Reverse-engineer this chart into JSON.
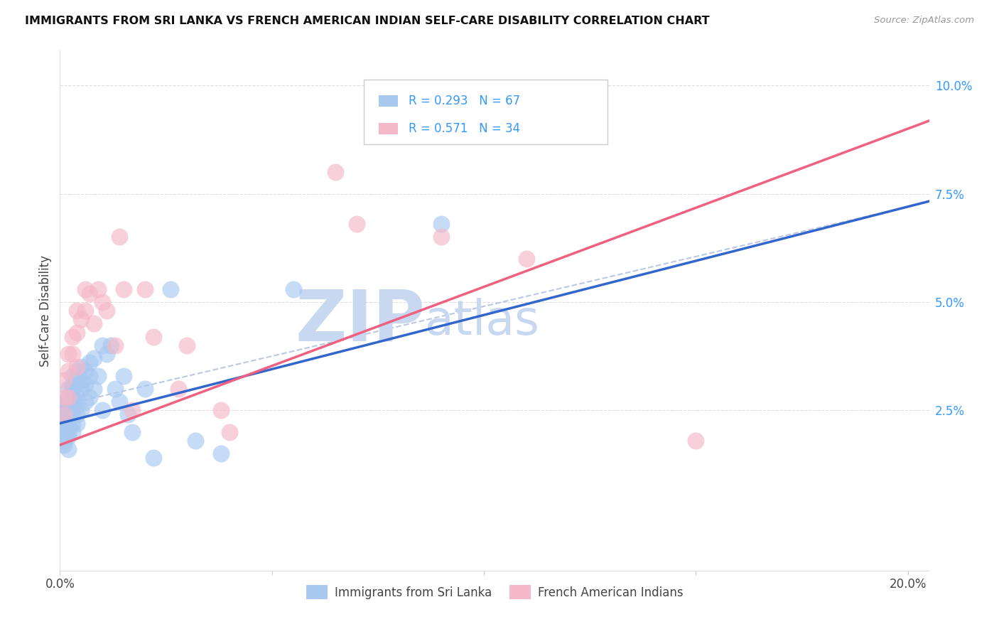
{
  "title": "IMMIGRANTS FROM SRI LANKA VS FRENCH AMERICAN INDIAN SELF-CARE DISABILITY CORRELATION CHART",
  "source": "Source: ZipAtlas.com",
  "ylabel": "Self-Care Disability",
  "xlim": [
    0.0,
    0.205
  ],
  "ylim": [
    -0.012,
    0.108
  ],
  "xtick_positions": [
    0.0,
    0.05,
    0.1,
    0.15,
    0.2
  ],
  "xtick_labels": [
    "0.0%",
    "",
    "",
    "",
    "20.0%"
  ],
  "yticks_right": [
    0.025,
    0.05,
    0.075,
    0.1
  ],
  "yticklabels_right": [
    "2.5%",
    "5.0%",
    "7.5%",
    "10.0%"
  ],
  "series1_color": "#A8C8F0",
  "series2_color": "#F5B8C8",
  "series1_label": "Immigrants from Sri Lanka",
  "series2_label": "French American Indians",
  "R1": "0.293",
  "N1": "67",
  "R2": "0.571",
  "N2": "34",
  "watermark_text": "ZIPAtlas",
  "watermark_color": "#C8D8F0",
  "background_color": "#ffffff",
  "line1_color": "#3366CC",
  "line1_style": "-",
  "line2_color": "#F06080",
  "line2_style": "-",
  "series1_x": [
    0.001,
    0.001,
    0.001,
    0.001,
    0.001,
    0.001,
    0.001,
    0.001,
    0.001,
    0.001,
    0.002,
    0.002,
    0.002,
    0.002,
    0.002,
    0.002,
    0.002,
    0.002,
    0.002,
    0.002,
    0.002,
    0.002,
    0.003,
    0.003,
    0.003,
    0.003,
    0.003,
    0.003,
    0.003,
    0.003,
    0.003,
    0.004,
    0.004,
    0.004,
    0.004,
    0.004,
    0.004,
    0.004,
    0.005,
    0.005,
    0.005,
    0.005,
    0.006,
    0.006,
    0.006,
    0.007,
    0.007,
    0.007,
    0.008,
    0.008,
    0.009,
    0.01,
    0.01,
    0.011,
    0.012,
    0.013,
    0.014,
    0.015,
    0.016,
    0.017,
    0.02,
    0.022,
    0.026,
    0.032,
    0.038,
    0.055,
    0.09
  ],
  "series1_y": [
    0.026,
    0.025,
    0.024,
    0.023,
    0.022,
    0.021,
    0.02,
    0.019,
    0.018,
    0.017,
    0.03,
    0.028,
    0.027,
    0.026,
    0.025,
    0.024,
    0.023,
    0.022,
    0.021,
    0.02,
    0.019,
    0.016,
    0.033,
    0.031,
    0.03,
    0.028,
    0.027,
    0.026,
    0.024,
    0.022,
    0.02,
    0.034,
    0.032,
    0.031,
    0.028,
    0.026,
    0.024,
    0.022,
    0.035,
    0.032,
    0.03,
    0.025,
    0.034,
    0.031,
    0.027,
    0.036,
    0.033,
    0.028,
    0.037,
    0.03,
    0.033,
    0.04,
    0.025,
    0.038,
    0.04,
    0.03,
    0.027,
    0.033,
    0.024,
    0.02,
    0.03,
    0.014,
    0.053,
    0.018,
    0.015,
    0.053,
    0.068
  ],
  "series2_x": [
    0.001,
    0.001,
    0.001,
    0.002,
    0.002,
    0.002,
    0.003,
    0.003,
    0.004,
    0.004,
    0.004,
    0.005,
    0.006,
    0.006,
    0.007,
    0.008,
    0.009,
    0.01,
    0.011,
    0.013,
    0.014,
    0.015,
    0.017,
    0.02,
    0.022,
    0.028,
    0.03,
    0.038,
    0.04,
    0.065,
    0.07,
    0.09,
    0.11,
    0.15
  ],
  "series2_y": [
    0.032,
    0.028,
    0.024,
    0.038,
    0.034,
    0.028,
    0.042,
    0.038,
    0.048,
    0.043,
    0.035,
    0.046,
    0.053,
    0.048,
    0.052,
    0.045,
    0.053,
    0.05,
    0.048,
    0.04,
    0.065,
    0.053,
    0.025,
    0.053,
    0.042,
    0.03,
    0.04,
    0.025,
    0.02,
    0.08,
    0.068,
    0.065,
    0.06,
    0.018
  ]
}
